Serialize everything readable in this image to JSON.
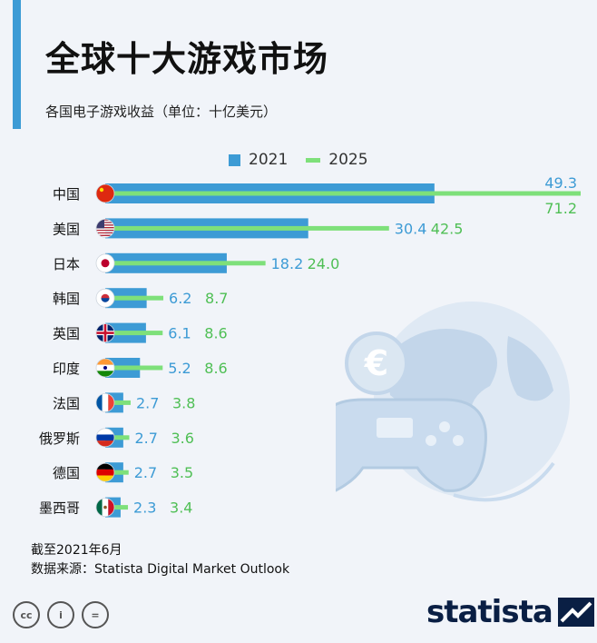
{
  "title": "全球十大游戏市场",
  "subtitle": "各国电子游戏收益（单位：十亿美元）",
  "legend": {
    "label_2021": "2021",
    "label_2025": "2025"
  },
  "colors": {
    "bar_2021": "#3d9bd5",
    "line_2025": "#7ee07a",
    "accent": "#3d9bd5"
  },
  "chart_data": {
    "type": "bar",
    "orientation": "horizontal",
    "categories": [
      "中国",
      "美国",
      "日本",
      "韩国",
      "英国",
      "印度",
      "法国",
      "俄罗斯",
      "德国",
      "墨西哥"
    ],
    "series": [
      {
        "name": "2021",
        "values": [
          49.3,
          30.4,
          18.2,
          6.2,
          6.1,
          5.2,
          2.7,
          2.7,
          2.7,
          2.3
        ]
      },
      {
        "name": "2025",
        "values": [
          71.2,
          42.5,
          24.0,
          8.7,
          8.6,
          8.6,
          3.8,
          3.6,
          3.5,
          3.4
        ]
      }
    ],
    "labels_2021": [
      "49.3",
      "30.4",
      "18.2",
      "6.2",
      "6.1",
      "5.2",
      "2.7",
      "2.7",
      "2.7",
      "2.3"
    ],
    "labels_2025": [
      "71.2",
      "42.5",
      "24.0",
      "8.7",
      "8.6",
      "8.6",
      "3.8",
      "3.6",
      "3.5",
      "3.4"
    ],
    "flag_icons": [
      "china-flag-icon",
      "usa-flag-icon",
      "japan-flag-icon",
      "korea-flag-icon",
      "uk-flag-icon",
      "india-flag-icon",
      "france-flag-icon",
      "russia-flag-icon",
      "germany-flag-icon",
      "mexico-flag-icon"
    ],
    "xlim": [
      0,
      71.2
    ],
    "grid": false,
    "legend_position": "top"
  },
  "footnote": {
    "date": "截至2021年6月",
    "source": "数据来源：Statista Digital Market Outlook"
  },
  "brand": "statista"
}
